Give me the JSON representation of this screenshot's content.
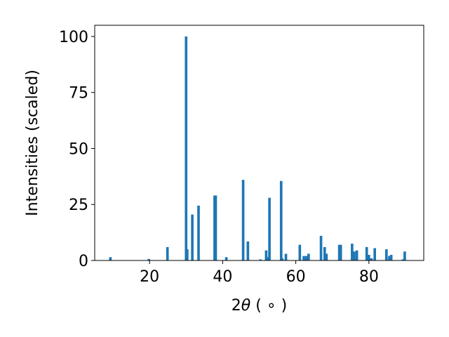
{
  "chart_data": {
    "type": "bar",
    "xlabel": "2θ (°)",
    "xlabel_parts": {
      "prefix": "2",
      "symbol": "θ",
      "suffix": " ( ∘ )"
    },
    "ylabel": "Intensities (scaled)",
    "xlim": [
      5,
      95
    ],
    "ylim": [
      0,
      105
    ],
    "x_ticks": [
      20,
      40,
      60,
      80
    ],
    "y_ticks": [
      0,
      25,
      50,
      75,
      100
    ],
    "grid": false,
    "legend": "none",
    "bar_color": "#1f77b4",
    "bar_width": 0.7,
    "series": [
      {
        "x": [
          9.3,
          19.8,
          24.9,
          30.0,
          30.3,
          31.7,
          33.4,
          37.8,
          38.1,
          41.0,
          45.6,
          46.9,
          50.3,
          51.9,
          52.3,
          52.8,
          56.0,
          56.3,
          57.3,
          61.1,
          62.2,
          62.9,
          63.5,
          66.9,
          67.9,
          68.4,
          71.9,
          72.3,
          75.4,
          76.0,
          76.7,
          79.4,
          80.0,
          80.7,
          81.6,
          84.8,
          85.6,
          86.1,
          89.3,
          89.8
        ],
        "values": [
          1.5,
          0.7,
          6.0,
          100.0,
          5.0,
          20.5,
          24.5,
          29.0,
          29.0,
          1.5,
          36.0,
          8.5,
          0.5,
          4.5,
          1.5,
          28.0,
          35.5,
          1.0,
          3.0,
          7.0,
          2.0,
          2.0,
          3.0,
          11.0,
          6.0,
          3.0,
          7.0,
          7.0,
          7.5,
          4.0,
          4.5,
          6.0,
          2.5,
          1.0,
          5.5,
          5.0,
          2.0,
          2.5,
          0.5,
          4.0
        ]
      }
    ]
  }
}
